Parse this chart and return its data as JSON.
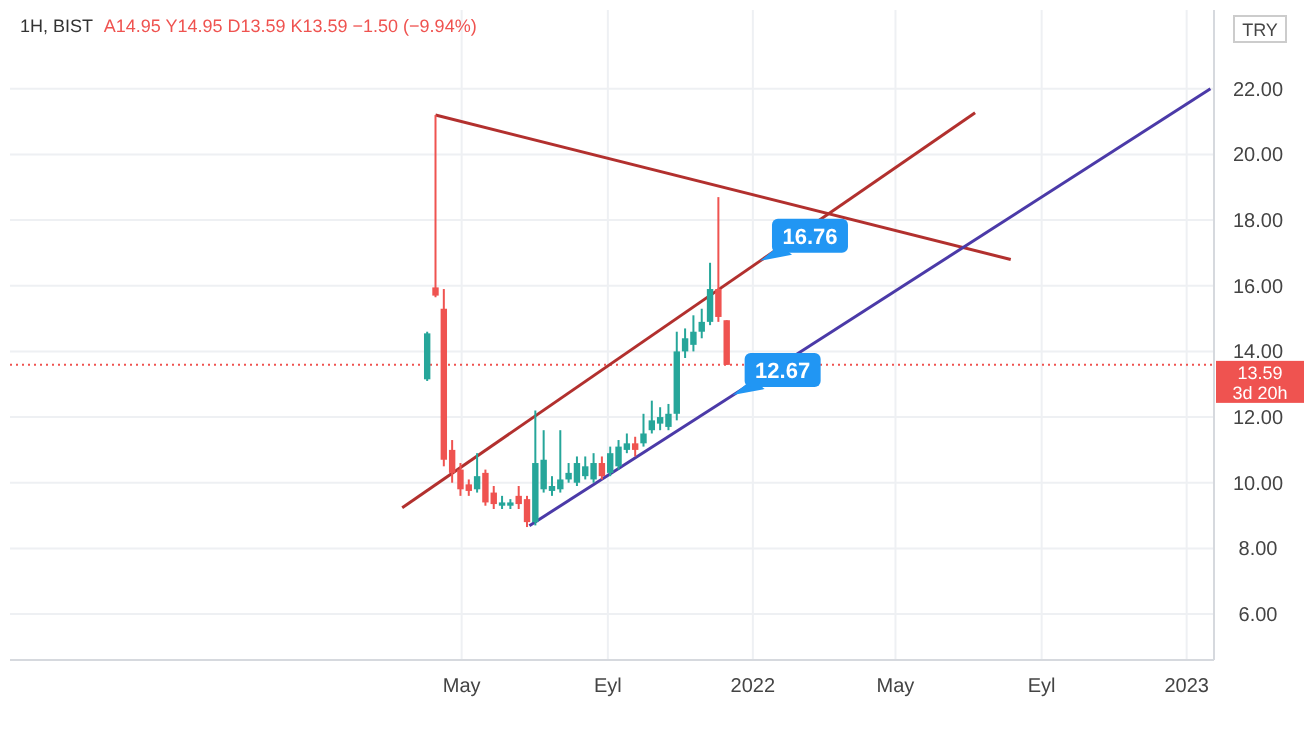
{
  "chart_data": {
    "type": "candlestick",
    "title": "1H, BIST",
    "subtitle": "A14.95 Y14.95 D13.59 K13.59 −1.50 (−9.94%)",
    "ylabel": "TRY",
    "x": [
      "2021-04-02",
      "2021-04-09",
      "2021-04-16",
      "2021-04-23",
      "2021-04-30",
      "2021-05-07",
      "2021-05-14",
      "2021-05-21",
      "2021-05-28",
      "2021-06-04",
      "2021-06-11",
      "2021-06-18",
      "2021-06-25",
      "2021-07-02",
      "2021-07-09",
      "2021-07-16",
      "2021-07-23",
      "2021-07-30",
      "2021-08-06",
      "2021-08-13",
      "2021-08-20",
      "2021-08-27",
      "2021-09-03",
      "2021-09-10",
      "2021-09-17",
      "2021-09-24",
      "2021-10-01",
      "2021-10-08",
      "2021-10-15",
      "2021-10-22",
      "2021-10-29",
      "2021-11-05",
      "2021-11-12",
      "2021-11-19",
      "2021-11-26",
      "2021-12-03",
      "2021-12-10"
    ],
    "ohlc": [
      [
        13.15,
        14.6,
        13.1,
        14.55
      ],
      [
        15.95,
        21.2,
        15.65,
        15.7
      ],
      [
        15.3,
        15.9,
        10.5,
        10.7
      ],
      [
        11.0,
        11.3,
        10.0,
        10.3
      ],
      [
        10.4,
        10.6,
        9.6,
        9.8
      ],
      [
        9.95,
        10.1,
        9.6,
        9.75
      ],
      [
        9.8,
        10.9,
        9.7,
        10.2
      ],
      [
        10.3,
        10.4,
        9.3,
        9.4
      ],
      [
        9.7,
        9.9,
        9.2,
        9.35
      ],
      [
        9.3,
        9.6,
        9.2,
        9.4
      ],
      [
        9.3,
        9.5,
        9.2,
        9.4
      ],
      [
        9.6,
        9.9,
        9.2,
        9.35
      ],
      [
        9.5,
        9.6,
        8.65,
        8.8
      ],
      [
        8.8,
        12.2,
        8.7,
        10.6
      ],
      [
        9.8,
        11.6,
        9.7,
        10.7
      ],
      [
        9.75,
        10.2,
        9.6,
        9.9
      ],
      [
        9.8,
        11.6,
        9.7,
        10.1
      ],
      [
        10.1,
        10.6,
        10.0,
        10.3
      ],
      [
        10.0,
        10.8,
        9.9,
        10.6
      ],
      [
        10.2,
        10.8,
        10.1,
        10.5
      ],
      [
        10.1,
        10.9,
        10.0,
        10.6
      ],
      [
        10.6,
        10.8,
        10.1,
        10.2
      ],
      [
        10.3,
        11.1,
        10.2,
        10.9
      ],
      [
        10.5,
        11.3,
        10.4,
        11.1
      ],
      [
        11.0,
        11.5,
        10.9,
        11.2
      ],
      [
        11.2,
        11.4,
        10.8,
        11.0
      ],
      [
        11.2,
        12.1,
        11.1,
        11.5
      ],
      [
        11.6,
        12.5,
        11.5,
        11.9
      ],
      [
        11.8,
        12.3,
        11.6,
        12.0
      ],
      [
        11.7,
        12.4,
        11.6,
        12.1
      ],
      [
        12.1,
        14.6,
        11.9,
        14.0
      ],
      [
        14.0,
        14.7,
        13.8,
        14.4
      ],
      [
        14.2,
        15.1,
        14.0,
        14.6
      ],
      [
        14.6,
        15.3,
        14.4,
        14.9
      ],
      [
        14.9,
        16.7,
        14.8,
        15.9
      ],
      [
        15.9,
        18.7,
        14.9,
        15.05
      ],
      [
        14.95,
        14.95,
        13.59,
        13.59
      ]
    ],
    "colors": [
      "#26a69a",
      "#ef5350",
      "#ef5350",
      "#ef5350",
      "#ef5350",
      "#ef5350",
      "#26a69a",
      "#ef5350",
      "#ef5350",
      "#26a69a",
      "#26a69a",
      "#ef5350",
      "#ef5350",
      "#26a69a",
      "#26a69a",
      "#26a69a",
      "#26a69a",
      "#26a69a",
      "#26a69a",
      "#26a69a",
      "#26a69a",
      "#ef5350",
      "#26a69a",
      "#26a69a",
      "#26a69a",
      "#ef5350",
      "#26a69a",
      "#26a69a",
      "#26a69a",
      "#26a69a",
      "#26a69a",
      "#26a69a",
      "#26a69a",
      "#26a69a",
      "#26a69a",
      "#ef5350",
      "#ef5350"
    ],
    "series": [
      {
        "type": "line",
        "color": "#b2302e",
        "x": [
          "2021-04-09",
          "2022-08-06"
        ],
        "values": [
          21.2,
          16.8
        ]
      },
      {
        "type": "line",
        "color": "#b2302e",
        "x": [
          "2021-03-12",
          "2022-07-07"
        ],
        "values": [
          9.24,
          21.27
        ]
      },
      {
        "type": "line",
        "color": "#4b3aa8",
        "x": [
          "2021-06-27",
          "2023-01-21"
        ],
        "values": [
          8.69,
          22.0
        ]
      }
    ],
    "xlim": [
      "2020-04-16",
      "2023-01-24"
    ],
    "ylim": [
      4.6,
      24.4
    ],
    "xticks": [
      {
        "value": "2021-05-01",
        "label": "May"
      },
      {
        "value": "2021-09-01",
        "label": "Eyl"
      },
      {
        "value": "2022-01-01",
        "label": "2022"
      },
      {
        "value": "2022-05-01",
        "label": "May"
      },
      {
        "value": "2022-09-01",
        "label": "Eyl"
      },
      {
        "value": "2023-01-01",
        "label": "2023"
      }
    ],
    "yticks": [
      {
        "value": 6,
        "label": "6.00"
      },
      {
        "value": 8,
        "label": "8.00"
      },
      {
        "value": 10,
        "label": "10.00"
      },
      {
        "value": 12,
        "label": "12.00"
      },
      {
        "value": 14,
        "label": "14.00"
      },
      {
        "value": 16,
        "label": "16.00"
      },
      {
        "value": 18,
        "label": "18.00"
      },
      {
        "value": 20,
        "label": "20.00"
      },
      {
        "value": 22,
        "label": "22.00"
      }
    ],
    "grid": true,
    "ref_lines": [
      {
        "axis": "y",
        "value": 13.59,
        "label": "13.59",
        "color": "#ef5350",
        "line_style": "dotted"
      }
    ],
    "annotations": [
      {
        "text": "16.76",
        "x": "2022-01-07",
        "y": 16.76
      },
      {
        "text": "12.67",
        "x": "2021-12-15",
        "y": 12.67
      },
      "3d 20h"
    ]
  }
}
